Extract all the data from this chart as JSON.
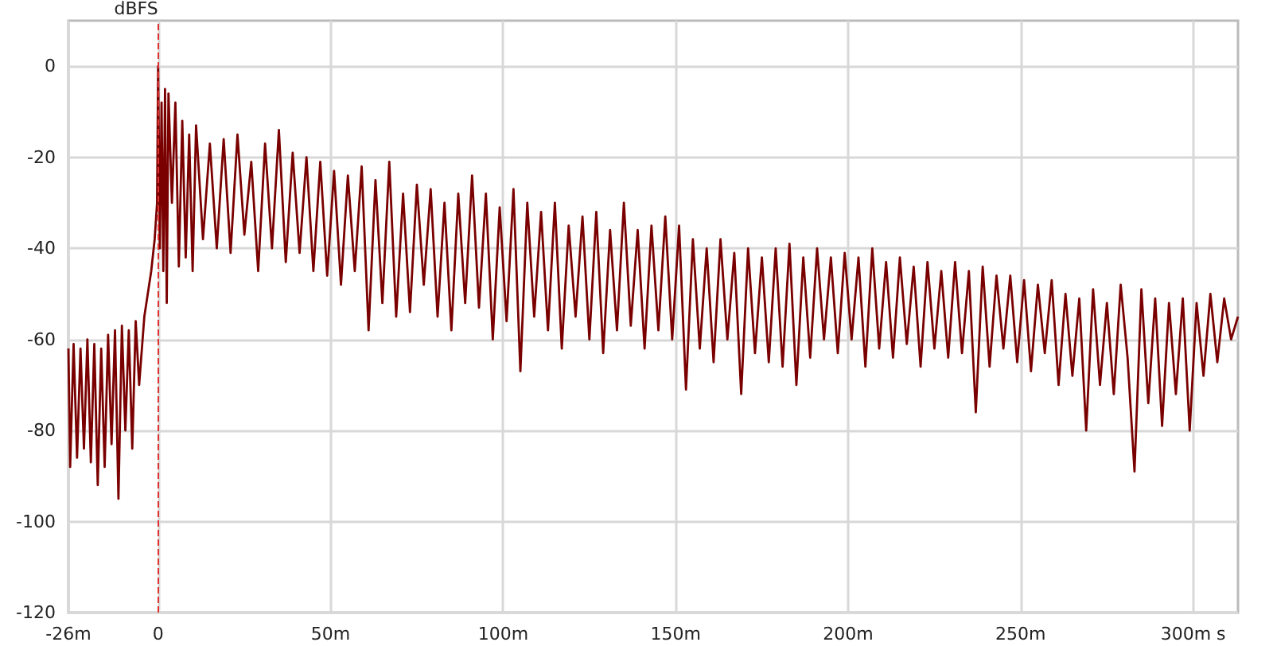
{
  "chart_data": {
    "type": "line",
    "ylabel": "dBFS",
    "color": "#7a0000",
    "marker": "none",
    "line_style": "solid",
    "grid": true,
    "xlim": [
      -26,
      313
    ],
    "xticks": [
      {
        "value": -26,
        "label": "-26m"
      },
      0,
      {
        "value": 50,
        "label": "50m"
      },
      {
        "value": 100,
        "label": "100m"
      },
      {
        "value": 150,
        "label": "150m"
      },
      {
        "value": 200,
        "label": "200m"
      },
      {
        "value": 250,
        "label": "250m"
      },
      {
        "value": 300,
        "label": "300m s"
      }
    ],
    "ylim": [
      -120,
      10
    ],
    "yticks": [
      -120,
      -100,
      -80,
      -60,
      -40,
      -20,
      0
    ],
    "ref_lines": [
      {
        "axis": "x",
        "value": 0,
        "color": "#e03030",
        "line_style": "dashed"
      }
    ],
    "x": [
      -26,
      -25.5,
      -24.5,
      -23.5,
      -22.5,
      -21.5,
      -20.5,
      -19.5,
      -18.5,
      -17.5,
      -16.5,
      -15.5,
      -14.5,
      -13.5,
      -12.5,
      -11.5,
      -10.5,
      -9.5,
      -8.5,
      -7.5,
      -6.5,
      -5.5,
      -4,
      -3,
      -2,
      -1,
      -0.3,
      0,
      0.5,
      1,
      1.5,
      2,
      2.5,
      3,
      4,
      5,
      6,
      7,
      8,
      9,
      10,
      11,
      13,
      15,
      17,
      19,
      21,
      23,
      25,
      27,
      29,
      31,
      33,
      35,
      37,
      39,
      41,
      43,
      45,
      47,
      49,
      51,
      53,
      55,
      57,
      59,
      61,
      63,
      65,
      67,
      69,
      71,
      73,
      75,
      77,
      79,
      81,
      83,
      85,
      87,
      89,
      91,
      93,
      95,
      97,
      99,
      101,
      103,
      105,
      107,
      109,
      111,
      113,
      115,
      117,
      119,
      121,
      123,
      125,
      127,
      129,
      131,
      133,
      135,
      137,
      139,
      141,
      143,
      145,
      147,
      149,
      151,
      153,
      155,
      157,
      159,
      161,
      163,
      165,
      167,
      169,
      171,
      173,
      175,
      177,
      179,
      181,
      183,
      185,
      187,
      189,
      191,
      193,
      195,
      197,
      199,
      201,
      203,
      205,
      207,
      209,
      211,
      213,
      215,
      217,
      219,
      221,
      223,
      225,
      227,
      229,
      231,
      233,
      235,
      237,
      239,
      241,
      243,
      245,
      247,
      249,
      251,
      253,
      255,
      257,
      259,
      261,
      263,
      265,
      267,
      269,
      271,
      273,
      275,
      277,
      279,
      281,
      283,
      285,
      287,
      289,
      291,
      293,
      295,
      297,
      299,
      301,
      303,
      305,
      307,
      309,
      311,
      313
    ],
    "values": [
      -62,
      -88,
      -61,
      -86,
      -62,
      -84,
      -60,
      -87,
      -61,
      -92,
      -62,
      -88,
      -59,
      -83,
      -58,
      -95,
      -57,
      -80,
      -58,
      -84,
      -56,
      -70,
      -55,
      -50,
      -45,
      -38,
      -30,
      0,
      -40,
      -8,
      -45,
      -5,
      -52,
      -6,
      -30,
      -8,
      -44,
      -12,
      -42,
      -15,
      -45,
      -13,
      -38,
      -17,
      -40,
      -16,
      -41,
      -15,
      -37,
      -21,
      -45,
      -17,
      -40,
      -14,
      -43,
      -19,
      -41,
      -20,
      -45,
      -21,
      -46,
      -23,
      -48,
      -24,
      -45,
      -22,
      -58,
      -25,
      -52,
      -21,
      -55,
      -28,
      -54,
      -26,
      -48,
      -27,
      -55,
      -30,
      -58,
      -28,
      -52,
      -24,
      -53,
      -28,
      -60,
      -31,
      -56,
      -27,
      -67,
      -30,
      -55,
      -32,
      -58,
      -30,
      -62,
      -35,
      -55,
      -33,
      -60,
      -32,
      -63,
      -36,
      -58,
      -30,
      -57,
      -36,
      -62,
      -35,
      -58,
      -33,
      -60,
      -35,
      -71,
      -38,
      -62,
      -40,
      -65,
      -38,
      -60,
      -41,
      -72,
      -40,
      -63,
      -42,
      -65,
      -40,
      -66,
      -39,
      -70,
      -42,
      -64,
      -40,
      -60,
      -42,
      -63,
      -41,
      -60,
      -42,
      -66,
      -40,
      -62,
      -43,
      -64,
      -42,
      -61,
      -44,
      -66,
      -43,
      -62,
      -45,
      -64,
      -43,
      -63,
      -45,
      -76,
      -44,
      -66,
      -46,
      -62,
      -46,
      -65,
      -47,
      -67,
      -48,
      -63,
      -47,
      -70,
      -50,
      -68,
      -51,
      -80,
      -49,
      -70,
      -52,
      -72,
      -48,
      -64,
      -89,
      -49,
      -74,
      -51,
      -79,
      -52,
      -72,
      -51,
      -80,
      -52,
      -68,
      -50,
      -65,
      -51,
      -60,
      -55
    ]
  }
}
